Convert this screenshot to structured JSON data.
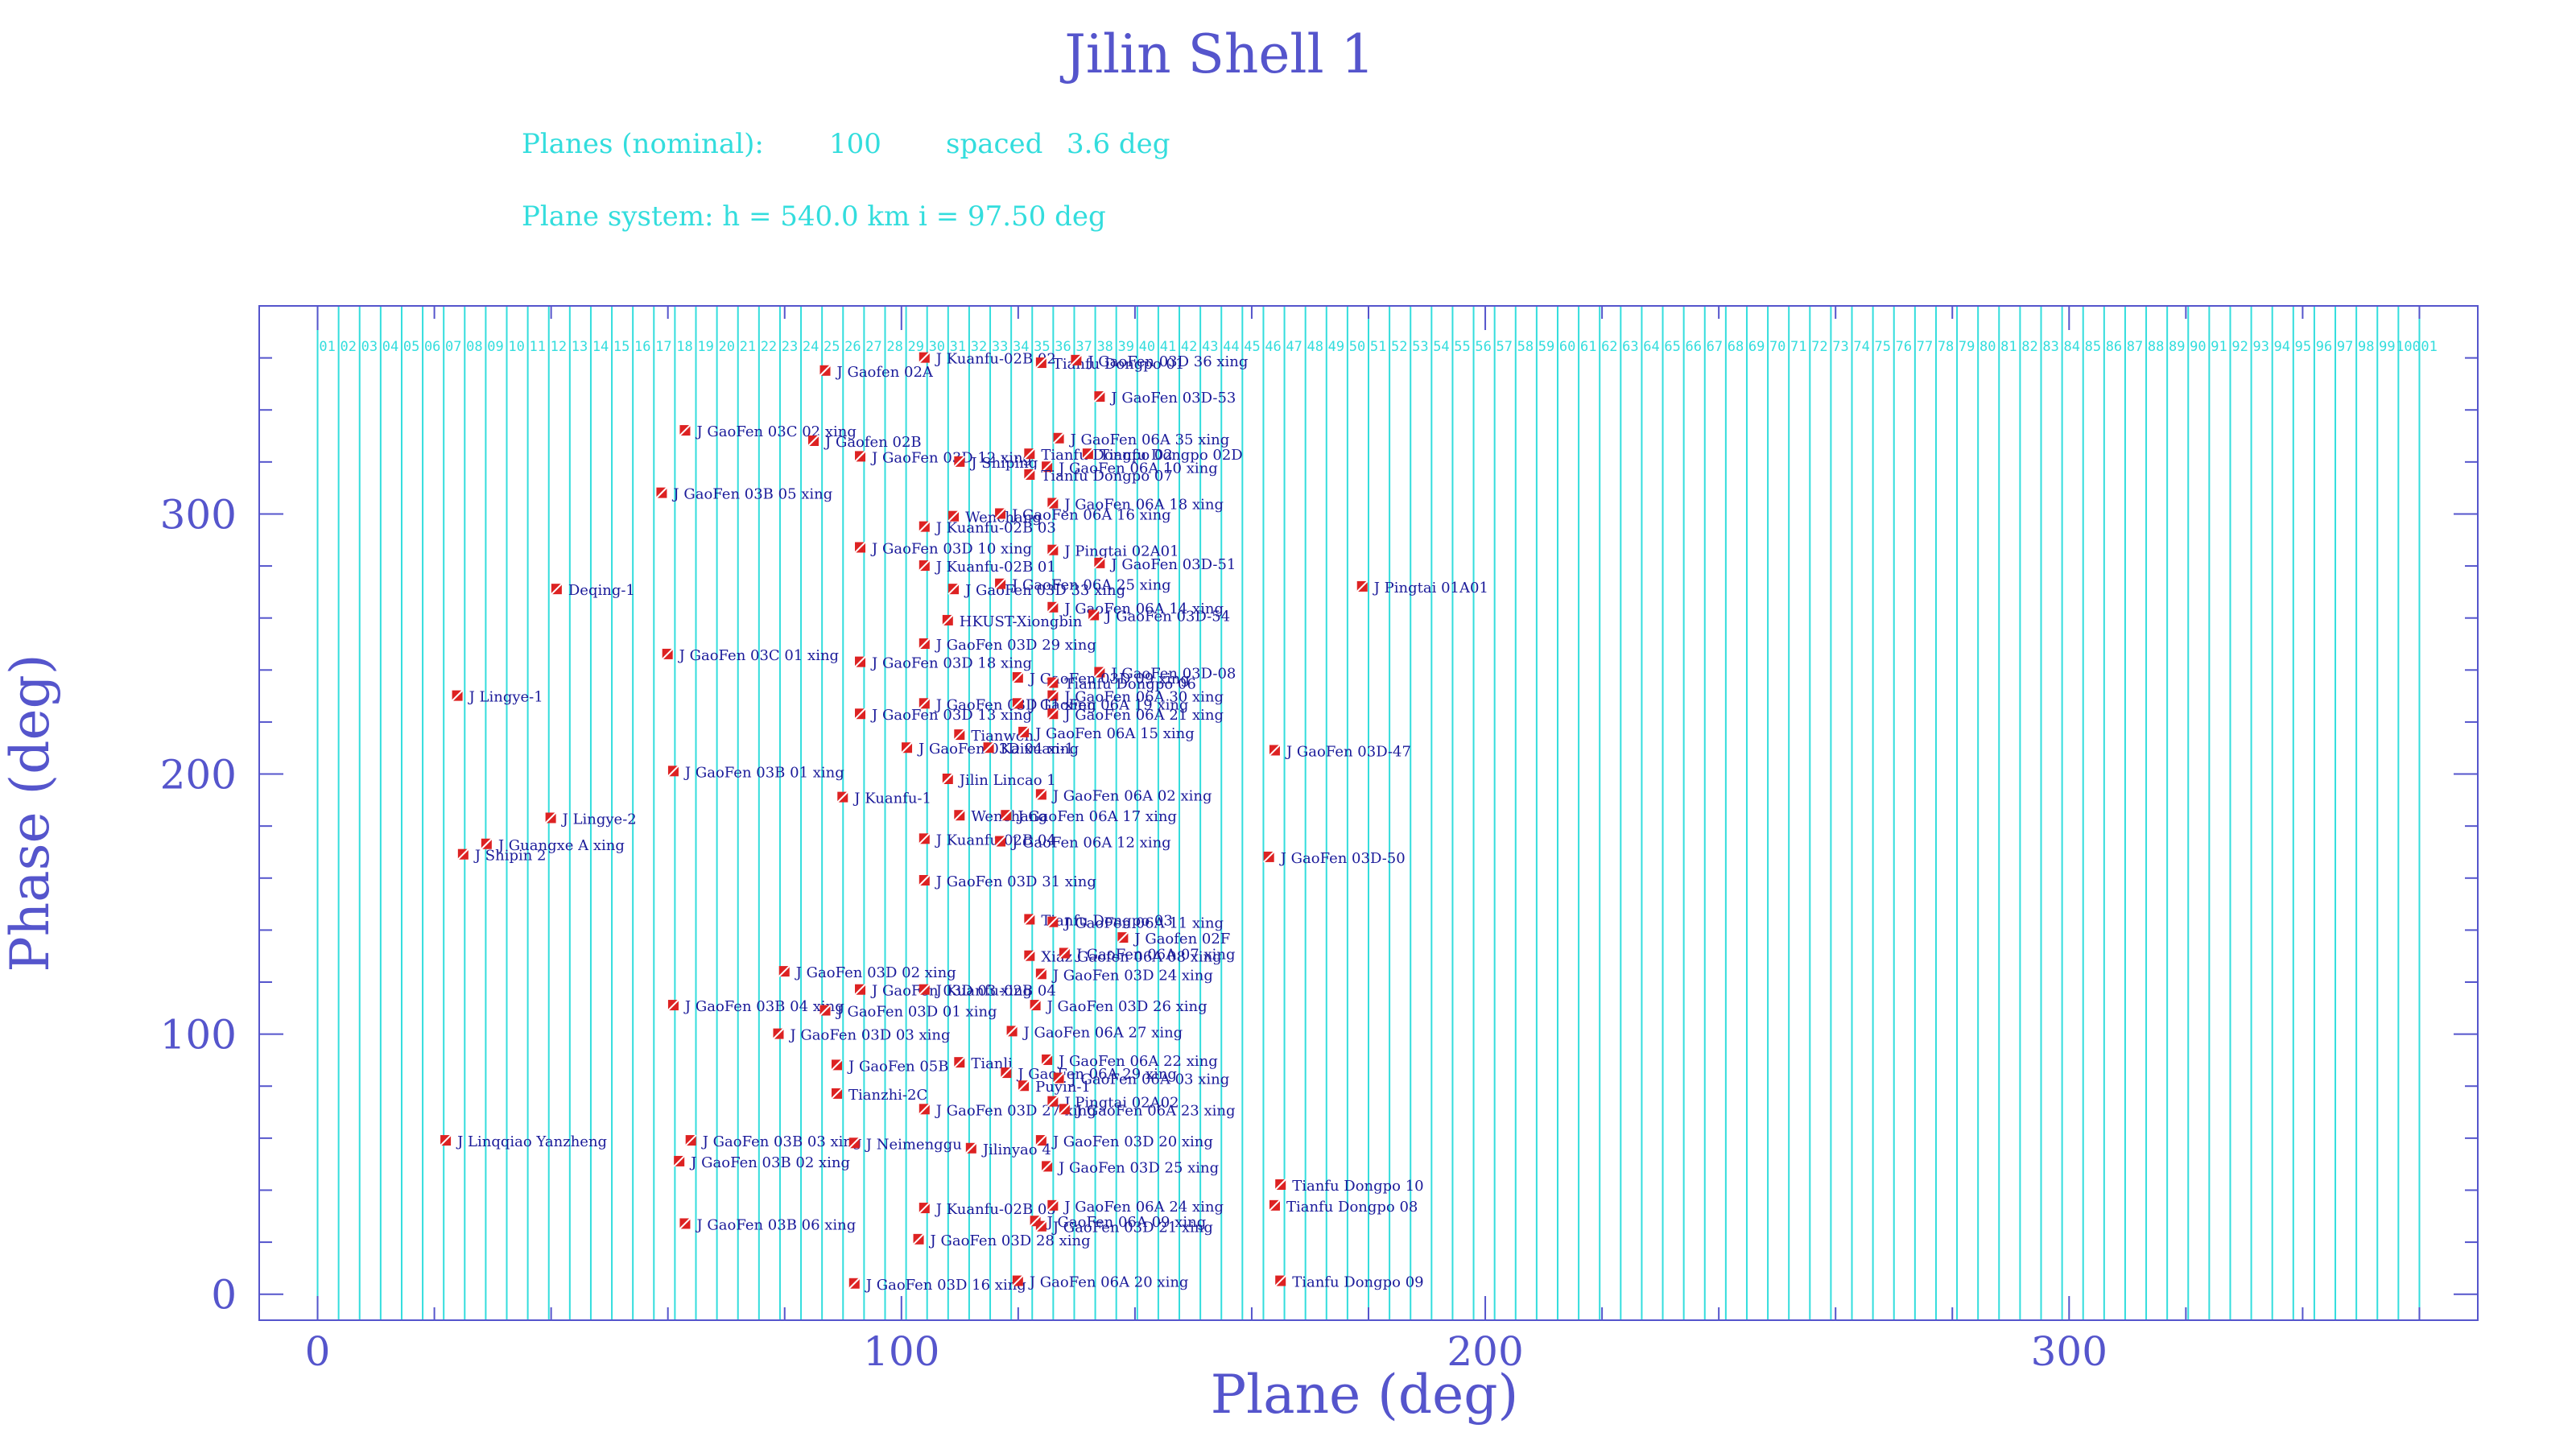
{
  "header": {
    "title": "Jilin Shell 1",
    "planes_label": "Planes (nominal):",
    "planes_count": "100",
    "spaced_label": "spaced",
    "spacing": "3.6 deg",
    "plane_system": "Plane system: h = 540.0 km  i = 97.50 deg"
  },
  "chart_data": {
    "type": "scatter",
    "xlabel": "Plane (deg)",
    "ylabel": "Phase (deg)",
    "xlim": [
      -10,
      370
    ],
    "ylim": [
      -10,
      380
    ],
    "xticks": [
      0,
      100,
      200,
      300
    ],
    "yticks": [
      0,
      100,
      200,
      300
    ],
    "plane_lines": {
      "count": 100,
      "spacing_deg": 3.6,
      "first_deg": 3.6
    },
    "plane_numbers": [
      "01",
      "02",
      "03",
      "04",
      "05",
      "06",
      "07",
      "08",
      "09",
      "10",
      "11",
      "12",
      "13",
      "14",
      "15",
      "16",
      "17",
      "18",
      "19",
      "20",
      "21",
      "22",
      "23",
      "24",
      "25",
      "26",
      "27",
      "28",
      "29",
      "30",
      "31",
      "32",
      "33",
      "34",
      "35",
      "36",
      "37",
      "38",
      "39",
      "40",
      "41",
      "42",
      "43",
      "44",
      "45",
      "46",
      "47",
      "48",
      "49",
      "50",
      "51",
      "52",
      "53",
      "54",
      "55",
      "56",
      "57",
      "58",
      "59",
      "60",
      "61",
      "62",
      "63",
      "64",
      "65",
      "66",
      "67",
      "68",
      "69",
      "70",
      "71",
      "72",
      "73",
      "74",
      "75",
      "76",
      "77",
      "78",
      "79",
      "80",
      "81",
      "82",
      "83",
      "84",
      "85",
      "86",
      "87",
      "88",
      "89",
      "90",
      "91",
      "92",
      "93",
      "94",
      "95",
      "96",
      "97",
      "98",
      "99",
      "100",
      "01"
    ],
    "colors": {
      "marker": "#dd2222",
      "label": "#1a1a99",
      "plane": "#33dddd",
      "axis": "#5555cc"
    },
    "points": [
      {
        "x": 104,
        "y": 360,
        "label": "J Kuanfu-02B 02"
      },
      {
        "x": 124,
        "y": 358,
        "label": "Tianfu Dongpo 01"
      },
      {
        "x": 130,
        "y": 359,
        "label": "J GaoFen 03D 36 xing"
      },
      {
        "x": 87,
        "y": 355,
        "label": "J Gaofen 02A"
      },
      {
        "x": 134,
        "y": 345,
        "label": "J GaoFen 03D-53"
      },
      {
        "x": 63,
        "y": 332,
        "label": "J GaoFen 03C 02 xing"
      },
      {
        "x": 85,
        "y": 328,
        "label": "J Gaofen 02B"
      },
      {
        "x": 93,
        "y": 322,
        "label": "J GaoFen 03D 12 xing"
      },
      {
        "x": 110,
        "y": 320,
        "label": "J Shiping"
      },
      {
        "x": 122,
        "y": 323,
        "label": "Tianfu Dongpo 02"
      },
      {
        "x": 127,
        "y": 329,
        "label": "J GaoFen 06A 35 xing"
      },
      {
        "x": 132,
        "y": 323,
        "label": "Tianfu Dongpo 02D"
      },
      {
        "x": 125,
        "y": 318,
        "label": "J GaoFen 06A 10 xing"
      },
      {
        "x": 122,
        "y": 315,
        "label": "Tianfu Dongpo 07"
      },
      {
        "x": 59,
        "y": 308,
        "label": "J GaoFen 03B 05 xing"
      },
      {
        "x": 126,
        "y": 304,
        "label": "J GaoFen 06A 18 xing"
      },
      {
        "x": 109,
        "y": 299,
        "label": "Wenchang"
      },
      {
        "x": 117,
        "y": 300,
        "label": "J GaoFen 06A 16 xing"
      },
      {
        "x": 104,
        "y": 295,
        "label": "J Kuanfu-02B 03"
      },
      {
        "x": 93,
        "y": 287,
        "label": "J GaoFen 03D 10 xing"
      },
      {
        "x": 126,
        "y": 286,
        "label": "J Pingtai 02A01"
      },
      {
        "x": 104,
        "y": 280,
        "label": "J Kuanfu-02B 01"
      },
      {
        "x": 134,
        "y": 281,
        "label": "J GaoFen 03D-51"
      },
      {
        "x": 41,
        "y": 271,
        "label": "Deqing-1"
      },
      {
        "x": 109,
        "y": 271,
        "label": "J GaoFen 03D 33 xing"
      },
      {
        "x": 117,
        "y": 273,
        "label": "J GaoFen 06A 25 xing"
      },
      {
        "x": 179,
        "y": 272,
        "label": "J Pingtai 01A01"
      },
      {
        "x": 126,
        "y": 264,
        "label": "J GaoFen 06A 14 xing"
      },
      {
        "x": 108,
        "y": 259,
        "label": "HKUST-Xiongbin"
      },
      {
        "x": 133,
        "y": 261,
        "label": "J GaoFen 03D-54"
      },
      {
        "x": 104,
        "y": 250,
        "label": "J GaoFen 03D 29 xing"
      },
      {
        "x": 60,
        "y": 246,
        "label": "J GaoFen 03C 01 xing"
      },
      {
        "x": 93,
        "y": 243,
        "label": "J GaoFen 03D 18 xing"
      },
      {
        "x": 134,
        "y": 239,
        "label": "J GaoFen 03D-08"
      },
      {
        "x": 120,
        "y": 237,
        "label": "J GaoFen 03D 09 xing"
      },
      {
        "x": 126,
        "y": 235,
        "label": "Tianfu Dongpo 06"
      },
      {
        "x": 24,
        "y": 230,
        "label": "J Lingye-1"
      },
      {
        "x": 126,
        "y": 230,
        "label": "J GaoFen 06A 30 xing"
      },
      {
        "x": 104,
        "y": 227,
        "label": "J GaoFen 03D 11 xing"
      },
      {
        "x": 120,
        "y": 227,
        "label": "J GaoFen 06A 19 xing"
      },
      {
        "x": 93,
        "y": 223,
        "label": "J GaoFen 03D 13 xing"
      },
      {
        "x": 126,
        "y": 223,
        "label": "J GaoFen 06A 21 xing"
      },
      {
        "x": 110,
        "y": 215,
        "label": "Tianwen"
      },
      {
        "x": 121,
        "y": 216,
        "label": "J GaoFen 06A 15 xing"
      },
      {
        "x": 101,
        "y": 210,
        "label": "J GaoFen 03D 04 xing"
      },
      {
        "x": 115,
        "y": 210,
        "label": "Kaixuan-1"
      },
      {
        "x": 164,
        "y": 209,
        "label": "J GaoFen 03D-47"
      },
      {
        "x": 61,
        "y": 201,
        "label": "J GaoFen 03B 01 xing"
      },
      {
        "x": 108,
        "y": 198,
        "label": "Jilin Lincao 1"
      },
      {
        "x": 124,
        "y": 192,
        "label": "J GaoFen 06A 02 xing"
      },
      {
        "x": 90,
        "y": 191,
        "label": "J Kuanfu-1"
      },
      {
        "x": 110,
        "y": 184,
        "label": "Wenchang"
      },
      {
        "x": 118,
        "y": 184,
        "label": "J GaoFen 06A 17 xing"
      },
      {
        "x": 40,
        "y": 183,
        "label": "J Lingye-2"
      },
      {
        "x": 29,
        "y": 173,
        "label": "J Guangxe A xing"
      },
      {
        "x": 25,
        "y": 169,
        "label": "J Shipin 2"
      },
      {
        "x": 104,
        "y": 175,
        "label": "J Kuanfu-02B 04"
      },
      {
        "x": 117,
        "y": 174,
        "label": "J GaoFen 06A 12 xing"
      },
      {
        "x": 163,
        "y": 168,
        "label": "J GaoFen 03D-50"
      },
      {
        "x": 104,
        "y": 159,
        "label": "J GaoFen 03D 31 xing"
      },
      {
        "x": 122,
        "y": 144,
        "label": "Tianfu Dongpo 03"
      },
      {
        "x": 126,
        "y": 143,
        "label": "J GaoFen 06A 11 xing"
      },
      {
        "x": 138,
        "y": 137,
        "label": "J Gaofen 02F"
      },
      {
        "x": 122,
        "y": 130,
        "label": "Xiaz Gaofen 06A 08 xing"
      },
      {
        "x": 128,
        "y": 131,
        "label": "J GaoFen 06A 07 xing"
      },
      {
        "x": 80,
        "y": 124,
        "label": "J GaoFen 03D 02 xing"
      },
      {
        "x": 124,
        "y": 123,
        "label": "J GaoFen 03D 24 xing"
      },
      {
        "x": 93,
        "y": 117,
        "label": "J GaoFen 03D 03 xing"
      },
      {
        "x": 104,
        "y": 117,
        "label": "J Kuanfu-02B 04"
      },
      {
        "x": 61,
        "y": 111,
        "label": "J GaoFen 03B 04 xing"
      },
      {
        "x": 87,
        "y": 109,
        "label": "J GaoFen 03D 01 xing"
      },
      {
        "x": 123,
        "y": 111,
        "label": "J GaoFen 03D 26 xing"
      },
      {
        "x": 79,
        "y": 100,
        "label": "J GaoFen 03D 03 xing"
      },
      {
        "x": 119,
        "y": 101,
        "label": "J GaoFen 06A 27 xing"
      },
      {
        "x": 125,
        "y": 90,
        "label": "J GaoFen 06A 22 xing"
      },
      {
        "x": 89,
        "y": 88,
        "label": "J GaoFen 05B"
      },
      {
        "x": 110,
        "y": 89,
        "label": "Tianli"
      },
      {
        "x": 118,
        "y": 85,
        "label": "J GaoFen 06A 29 xing"
      },
      {
        "x": 127,
        "y": 83,
        "label": "J GaoFen 06A 03 xing"
      },
      {
        "x": 121,
        "y": 80,
        "label": "Puyin-1"
      },
      {
        "x": 89,
        "y": 77,
        "label": "Tianzhi-2C"
      },
      {
        "x": 104,
        "y": 71,
        "label": "J GaoFen 03D 27 xing"
      },
      {
        "x": 126,
        "y": 74,
        "label": "J Pingtai 02A02"
      },
      {
        "x": 128,
        "y": 71,
        "label": "J GaoFen 06A 23 xing"
      },
      {
        "x": 22,
        "y": 59,
        "label": "J Linqqiao Yanzheng"
      },
      {
        "x": 64,
        "y": 59,
        "label": "J GaoFen 03B 03 xing"
      },
      {
        "x": 92,
        "y": 58,
        "label": "J Neimenggu"
      },
      {
        "x": 112,
        "y": 56,
        "label": "Jilinyao 4"
      },
      {
        "x": 124,
        "y": 59,
        "label": "J GaoFen 03D 20 xing"
      },
      {
        "x": 62,
        "y": 51,
        "label": "J GaoFen 03B 02 xing"
      },
      {
        "x": 125,
        "y": 49,
        "label": "J GaoFen 03D 25 xing"
      },
      {
        "x": 165,
        "y": 42,
        "label": "Tianfu Dongpo 10"
      },
      {
        "x": 104,
        "y": 33,
        "label": "J Kuanfu-02B 05"
      },
      {
        "x": 126,
        "y": 34,
        "label": "J GaoFen 06A 24 xing"
      },
      {
        "x": 164,
        "y": 34,
        "label": "Tianfu Dongpo 08"
      },
      {
        "x": 63,
        "y": 27,
        "label": "J GaoFen 03B 06 xing"
      },
      {
        "x": 123,
        "y": 28,
        "label": "J GaoFen 06A 09 xing"
      },
      {
        "x": 124,
        "y": 26,
        "label": "J GaoFen 03D 21 xing"
      },
      {
        "x": 103,
        "y": 21,
        "label": "J GaoFen 03D 28 xing"
      },
      {
        "x": 92,
        "y": 4,
        "label": "J GaoFen 03D 16 xing"
      },
      {
        "x": 120,
        "y": 5,
        "label": "J GaoFen 06A 20 xing"
      },
      {
        "x": 165,
        "y": 5,
        "label": "Tianfu Dongpo 09"
      }
    ]
  }
}
